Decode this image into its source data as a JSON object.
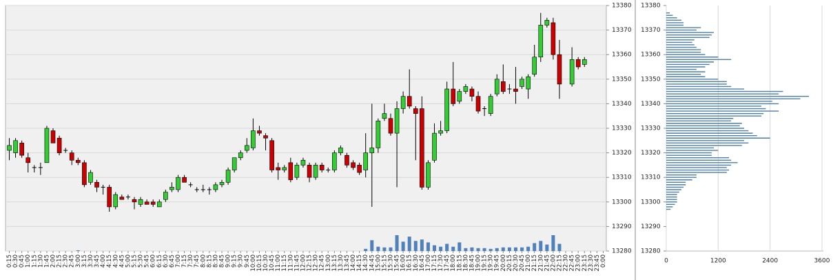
{
  "chart_data": [
    {
      "type": "candlestick",
      "categories": [
        "0:15",
        "0:30",
        "0:45",
        "1:00",
        "1:15",
        "1:30",
        "1:45",
        "2:00",
        "2:15",
        "2:30",
        "2:45",
        "3:00",
        "3:15",
        "3:30",
        "3:45",
        "4:00",
        "4:15",
        "4:30",
        "4:45",
        "5:00",
        "5:15",
        "5:30",
        "5:45",
        "6:00",
        "6:15",
        "6:30",
        "6:45",
        "7:00",
        "7:15",
        "7:30",
        "7:45",
        "8:00",
        "8:15",
        "8:30",
        "8:45",
        "9:00",
        "9:15",
        "9:30",
        "9:45",
        "10:00",
        "10:15",
        "10:30",
        "10:45",
        "11:00",
        "11:15",
        "11:30",
        "11:45",
        "12:00",
        "12:15",
        "12:30",
        "12:45",
        "13:00",
        "13:15",
        "13:30",
        "13:45",
        "14:00",
        "14:15",
        "14:30",
        "14:45",
        "15:00",
        "15:15",
        "15:30",
        "15:45",
        "16:00",
        "16:15",
        "16:30",
        "16:45",
        "17:00",
        "17:15",
        "17:30",
        "17:45",
        "18:00",
        "18:15",
        "18:30",
        "18:45",
        "19:00",
        "19:15",
        "19:30",
        "19:45",
        "20:00",
        "20:15",
        "20:30",
        "20:45",
        "21:00",
        "21:15",
        "21:30",
        "21:45",
        "22:00",
        "22:15",
        "22:30",
        "22:45",
        "23:00",
        "23:15",
        "23:30",
        "23:45",
        "0:00"
      ],
      "open": [
        13321,
        13320,
        13324,
        13318,
        13314,
        13314,
        13316,
        13329,
        13326,
        13321,
        13320,
        13317,
        13316,
        13308,
        13308,
        13306,
        13306,
        13298,
        13302,
        13302,
        13301,
        13299,
        13300,
        13300,
        13298,
        13301,
        13305,
        13305,
        13310,
        13307,
        13305,
        13305,
        13305,
        13305,
        13307,
        13308,
        13313,
        13318,
        13321,
        13322,
        13329,
        13327,
        13325,
        13314,
        13313,
        13316,
        13310,
        13315,
        13315,
        13310,
        13315,
        13313,
        13313,
        13320,
        13319,
        13316,
        13315,
        13313,
        13320,
        13322,
        13334,
        13334,
        13328,
        13338,
        13343,
        13338,
        13338,
        13306,
        13317,
        13328,
        13329,
        13346,
        13341,
        13345,
        13346,
        13343,
        13338,
        13336,
        13344,
        13349,
        13346,
        13346,
        13347,
        13346,
        13352,
        13359,
        13372,
        13373,
        13360,
        null,
        13348,
        13358,
        13356,
        null,
        null,
        null
      ],
      "high": [
        13326,
        13326,
        13325,
        13320,
        13315,
        13316,
        13331,
        13330,
        13327,
        13322,
        13321,
        13318,
        13317,
        13313,
        13309,
        13307,
        13307,
        13304,
        13303,
        13303,
        13302,
        13302,
        13301,
        13301,
        13301,
        13305,
        13308,
        13311,
        13311,
        13308,
        13306,
        13307,
        13306,
        13308,
        13309,
        13314,
        13318,
        13321,
        13326,
        13334,
        13331,
        13328,
        13326,
        13316,
        13315,
        13318,
        13316,
        13318,
        13316,
        13316,
        13316,
        13314,
        13321,
        13323,
        13320,
        13317,
        13316,
        13328,
        13340,
        13334,
        13340,
        13336,
        13341,
        13345,
        13354,
        13339,
        13343,
        13317,
        13332,
        13333,
        13349,
        13357,
        13346,
        13348,
        13347,
        13345,
        13339,
        13344,
        13352,
        13356,
        13348,
        13355,
        13351,
        13352,
        13364,
        13377,
        13375,
        13375,
        13366,
        null,
        13363,
        13359,
        13359,
        null,
        null,
        null
      ],
      "low": [
        13317,
        13318,
        13318,
        13312,
        13312,
        13311,
        13316,
        13324,
        13319,
        13320,
        13315,
        13315,
        13306,
        13307,
        13304,
        13303,
        13296,
        13297,
        13301,
        13301,
        13297,
        13298,
        13299,
        13298,
        13298,
        13300,
        13304,
        13304,
        13308,
        13306,
        13304,
        13304,
        13303,
        13304,
        13306,
        13307,
        13312,
        13317,
        13320,
        13321,
        13327,
        13321,
        13312,
        13309,
        13312,
        13308,
        13309,
        13314,
        13308,
        13309,
        13312,
        13312,
        13312,
        13319,
        13314,
        13313,
        13311,
        13310,
        13298,
        13320,
        13333,
        13327,
        13306,
        13336,
        13338,
        13317,
        13305,
        13305,
        13316,
        13327,
        13328,
        13339,
        13340,
        13344,
        13341,
        13336,
        13335,
        13335,
        13343,
        13344,
        13344,
        13340,
        13346,
        13342,
        13351,
        13357,
        13371,
        13358,
        13342,
        null,
        13347,
        13354,
        13355,
        null,
        null,
        null
      ],
      "close": [
        13323,
        13325,
        13319,
        13316,
        13314,
        13314,
        13330,
        13324,
        13320,
        13321,
        13317,
        13316,
        13307,
        13312,
        13306,
        13306,
        13298,
        13303,
        13301,
        13302,
        13300,
        13301,
        13299,
        13299,
        13300,
        13304,
        13306,
        13310,
        13308,
        13307,
        13305,
        13305,
        13305,
        13307,
        13308,
        13313,
        13318,
        13320,
        13323,
        13329,
        13328,
        13326,
        13313,
        13313,
        13314,
        13309,
        13315,
        13317,
        13310,
        13315,
        13313,
        13313,
        13320,
        13322,
        13315,
        13314,
        13312,
        13320,
        13322,
        13333,
        13336,
        13328,
        13338,
        13343,
        13339,
        13336,
        13306,
        13316,
        13328,
        13329,
        13346,
        13340,
        13345,
        13347,
        13343,
        13337,
        13338,
        13343,
        13350,
        13345,
        13346,
        13345,
        13350,
        13351,
        13359,
        13372,
        13374,
        13360,
        13348,
        null,
        13358,
        13355,
        13358,
        null,
        null,
        null
      ],
      "volume": [
        null,
        null,
        null,
        null,
        null,
        null,
        null,
        null,
        null,
        null,
        null,
        1,
        null,
        null,
        null,
        null,
        null,
        null,
        null,
        null,
        null,
        null,
        null,
        null,
        null,
        null,
        null,
        null,
        null,
        null,
        null,
        null,
        null,
        null,
        null,
        null,
        null,
        null,
        null,
        null,
        null,
        null,
        null,
        null,
        null,
        null,
        null,
        null,
        null,
        null,
        null,
        null,
        null,
        null,
        null,
        null,
        null,
        3,
        15,
        6,
        5,
        5,
        22,
        13,
        20,
        14,
        16,
        12,
        8,
        6,
        10,
        6,
        12,
        4,
        5,
        4,
        4,
        3,
        4,
        5,
        5,
        5,
        5,
        6,
        11,
        14,
        9,
        22,
        10,
        null,
        null,
        null,
        null,
        null,
        null,
        null
      ],
      "up_color": "#33cc33",
      "down_color": "#cc0000",
      "volume_color": "#4f81bd",
      "ylim": [
        13280,
        13380
      ],
      "yticks": [
        13280,
        13290,
        13300,
        13310,
        13320,
        13330,
        13340,
        13350,
        13360,
        13370,
        13380
      ],
      "grid": true
    },
    {
      "type": "profile",
      "y": [
        13297,
        13298,
        13299,
        13300,
        13301,
        13302,
        13303,
        13304,
        13305,
        13306,
        13307,
        13308,
        13309,
        13310,
        13311,
        13312,
        13313,
        13314,
        13315,
        13316,
        13317,
        13318,
        13319,
        13320,
        13321,
        13322,
        13323,
        13324,
        13325,
        13326,
        13327,
        13328,
        13329,
        13330,
        13331,
        13332,
        13333,
        13334,
        13335,
        13336,
        13337,
        13338,
        13339,
        13340,
        13341,
        13342,
        13343,
        13344,
        13345,
        13346,
        13347,
        13348,
        13349,
        13350,
        13351,
        13352,
        13353,
        13354,
        13355,
        13356,
        13357,
        13358,
        13359,
        13360,
        13361,
        13362,
        13363,
        13364,
        13365,
        13366,
        13367,
        13368,
        13369,
        13370,
        13371,
        13372,
        13373,
        13374,
        13375,
        13376,
        13377
      ],
      "values": [
        100,
        150,
        200,
        250,
        250,
        250,
        250,
        300,
        350,
        400,
        450,
        450,
        600,
        700,
        700,
        1400,
        1450,
        1400,
        1500,
        1650,
        1500,
        1450,
        1050,
        1050,
        1200,
        1100,
        1750,
        1900,
        1800,
        2400,
        2100,
        2000,
        1900,
        1800,
        1700,
        1750,
        1500,
        1550,
        2200,
        2250,
        2600,
        2300,
        2200,
        2600,
        2450,
        3100,
        3300,
        2600,
        2700,
        1800,
        1500,
        1400,
        1400,
        1200,
        900,
        800,
        900,
        700,
        900,
        1000,
        1100,
        1500,
        1200,
        900,
        800,
        800,
        700,
        650,
        600,
        650,
        1000,
        1050,
        1100,
        700,
        800,
        400,
        400,
        350,
        250,
        150,
        80
      ],
      "color": "#4a7ea8",
      "xlim": [
        0,
        3600
      ],
      "xticks": [
        0,
        1200,
        2400,
        3600
      ],
      "ylim": [
        13280,
        13380
      ],
      "yticks": [
        13280,
        13290,
        13300,
        13310,
        13320,
        13330,
        13340,
        13350,
        13360,
        13370,
        13380
      ],
      "grid": true
    }
  ]
}
